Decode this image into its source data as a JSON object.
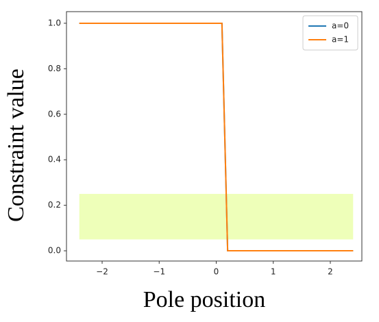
{
  "chart_data": {
    "type": "line",
    "x_label": "Pole position",
    "y_label": "Constraint value",
    "x": [
      -2.4,
      0.1,
      0.2,
      2.4
    ],
    "series": [
      {
        "name": "a=0",
        "color": "#1f77b4",
        "values": [
          1,
          1,
          0,
          0
        ]
      },
      {
        "name": "a=1",
        "color": "#ff7f0e",
        "values": [
          1,
          1,
          0,
          0
        ]
      }
    ],
    "band": {
      "x": [
        -2.4,
        2.4
      ],
      "y": [
        0.05,
        0.25
      ],
      "color": "#eeffb9"
    },
    "xlim": [
      -2.625,
      2.553
    ],
    "ylim": [
      -0.045,
      1.051
    ],
    "xticks": [
      {
        "value": -2,
        "label": "−2"
      },
      {
        "value": -1,
        "label": "−1"
      },
      0,
      1,
      2
    ],
    "yticks": [
      {
        "value": 0,
        "label": "0.0"
      },
      0.2,
      0.4,
      0.6,
      0.8,
      {
        "value": 1,
        "label": "1.0"
      }
    ],
    "grid": false,
    "legend": "upper right"
  }
}
